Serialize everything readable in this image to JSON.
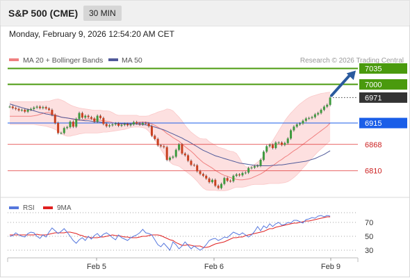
{
  "header": {
    "title": "S&P 500 (CME)",
    "timeframe": "30 MIN",
    "datetime": "Monday, February 9, 2026 12:54:20 AM CET"
  },
  "legend": {
    "ma20_bb": "MA 20 + Bollinger Bands",
    "ma50": "MA 50",
    "copyright": "Research © 2026 Trading Central",
    "rsi": "RSI",
    "rsi_ma": "9MA"
  },
  "colors": {
    "green": "#4a9a0e",
    "blue": "#1a5ee8",
    "red": "#e03030",
    "candle_up": "#3e9a3e",
    "candle_down": "#c84020",
    "bb_fill": "#fde0e0",
    "ma20": "#f08080",
    "ma50": "#505a9a",
    "arrow": "#2a5a9e",
    "rsi_line": "#5577dd",
    "rsi_ma_line": "#e02020"
  },
  "chart_data": [
    {
      "type": "candlestick",
      "title": "",
      "x_ticks": [
        "Feb 5",
        "Feb 6",
        "Feb 9"
      ],
      "price_range": [
        6753,
        7045
      ],
      "levels": [
        {
          "value": 7035,
          "label": "7035",
          "kind": "resistance"
        },
        {
          "value": 7000,
          "label": "7000",
          "kind": "resistance"
        },
        {
          "value": 6971,
          "label": "6971",
          "kind": "last"
        },
        {
          "value": 6915,
          "label": "6915",
          "kind": "pivot"
        },
        {
          "value": 6868,
          "label": "6868",
          "kind": "support"
        },
        {
          "value": 6810,
          "label": "6810",
          "kind": "support"
        }
      ],
      "close": [
        6951,
        6948,
        6946,
        6943,
        6944,
        6940,
        6944,
        6946,
        6949,
        6951,
        6948,
        6950,
        6947,
        6944,
        6933,
        6915,
        6893,
        6893,
        6904,
        6906,
        6918,
        6907,
        6924,
        6937,
        6927,
        6931,
        6928,
        6925,
        6918,
        6931,
        6926,
        6913,
        6908,
        6910,
        6912,
        6914,
        6909,
        6911,
        6913,
        6910,
        6912,
        6917,
        6914,
        6912,
        6915,
        6914,
        6908,
        6887,
        6880,
        6866,
        6864,
        6862,
        6834,
        6839,
        6841,
        6856,
        6868,
        6848,
        6844,
        6832,
        6823,
        6822,
        6809,
        6803,
        6799,
        6793,
        6785,
        6790,
        6777,
        6772,
        6781,
        6794,
        6788,
        6787,
        6799,
        6802,
        6800,
        6805,
        6806,
        6816,
        6817,
        6820,
        6821,
        6834,
        6852,
        6864,
        6867,
        6860,
        6872,
        6872,
        6867,
        6871,
        6881,
        6899,
        6907,
        6912,
        6914,
        6920,
        6925,
        6926,
        6928,
        6934,
        6937,
        6944,
        6951,
        6955,
        6971
      ],
      "ma20": [
        6930,
        6930,
        6930,
        6930,
        6930,
        6930,
        6930,
        6930,
        6931,
        6932,
        6934,
        6936,
        6938,
        6938,
        6935,
        6933,
        6931,
        6928,
        6927,
        6926,
        6925,
        6923,
        6922,
        6921,
        6922,
        6923,
        6924,
        6924,
        6923,
        6922,
        6921,
        6920,
        6919,
        6918,
        6916,
        6914,
        6913,
        6913,
        6913,
        6913,
        6914,
        6915,
        6916,
        6917,
        6917,
        6917,
        6916,
        6913,
        6910,
        6906,
        6902,
        6898,
        6892,
        6888,
        6883,
        6879,
        6875,
        6869,
        6863,
        6858,
        6853,
        6847,
        6840,
        6834,
        6828,
        6824,
        6820,
        6816,
        6811,
        6807,
        6803,
        6800,
        6798,
        6795,
        6793,
        6791,
        6790,
        6790,
        6791,
        6792,
        6794,
        6797,
        6800,
        6803,
        6807,
        6812,
        6817,
        6821,
        6826,
        6831,
        6835,
        6840,
        6844,
        6849,
        6854,
        6858,
        6863,
        6868,
        6873,
        6878,
        6883,
        6888,
        6893,
        6898,
        6903,
        6908,
        6915
      ],
      "bb_upper": [
        6962,
        6962,
        6962,
        6962,
        6962,
        6962,
        6962,
        6962,
        6962,
        6962,
        6962,
        6962,
        6963,
        6963,
        6965,
        6967,
        6968,
        6966,
        6963,
        6959,
        6955,
        6952,
        6950,
        6948,
        6947,
        6946,
        6945,
        6944,
        6943,
        6943,
        6943,
        6942,
        6942,
        6941,
        6938,
        6934,
        6932,
        6932,
        6932,
        6932,
        6932,
        6932,
        6932,
        6930,
        6930,
        6930,
        6931,
        6934,
        6936,
        6939,
        6941,
        6943,
        6946,
        6945,
        6942,
        6935,
        6928,
        6920,
        6910,
        6902,
        6895,
        6890,
        6885,
        6881,
        6880,
        6880,
        6874,
        6870,
        6866,
        6862,
        6860,
        6858,
        6855,
        6853,
        6852,
        6848,
        6838,
        6826,
        6819,
        6818,
        6820,
        6824,
        6829,
        6835,
        6843,
        6854,
        6866,
        6876,
        6887,
        6898,
        6909,
        6920,
        6929,
        6937,
        6944,
        6951,
        6957,
        6962,
        6967,
        6971,
        6974,
        6976,
        6978,
        6980,
        6981,
        6982,
        6983
      ],
      "bb_lower": [
        6912,
        6912,
        6912,
        6912,
        6912,
        6912,
        6912,
        6912,
        6912,
        6911,
        6910,
        6909,
        6908,
        6906,
        6904,
        6901,
        6897,
        6892,
        6888,
        6886,
        6886,
        6888,
        6889,
        6891,
        6892,
        6893,
        6893,
        6893,
        6893,
        6893,
        6894,
        6895,
        6895,
        6896,
        6897,
        6898,
        6899,
        6900,
        6901,
        6903,
        6905,
        6906,
        6906,
        6906,
        6905,
        6903,
        6897,
        6888,
        6878,
        6867,
        6857,
        6847,
        6836,
        6829,
        6824,
        6822,
        6820,
        6815,
        6810,
        6805,
        6800,
        6794,
        6787,
        6779,
        6772,
        6768,
        6767,
        6767,
        6767,
        6766,
        6766,
        6766,
        6767,
        6769,
        6772,
        6774,
        6774,
        6774,
        6775,
        6777,
        6779,
        6780,
        6780,
        6780,
        6780,
        6781,
        6782,
        6782,
        6782,
        6782,
        6783,
        6784,
        6786,
        6790,
        6795,
        6801,
        6808,
        6816,
        6823,
        6831,
        6838,
        6845,
        6852,
        6858,
        6864,
        6870,
        6876
      ],
      "ma50": [
        6957,
        6955,
        6953,
        6951,
        6949,
        6947,
        6945,
        6944,
        6942,
        6940,
        6938,
        6937,
        6935,
        6934,
        6932,
        6931,
        6930,
        6928,
        6927,
        6926,
        6925,
        6924,
        6923,
        6922,
        6921,
        6920,
        6920,
        6919,
        6918,
        6918,
        6917,
        6916,
        6916,
        6915,
        6915,
        6915,
        6914,
        6914,
        6914,
        6913,
        6913,
        6913,
        6913,
        6912,
        6912,
        6911,
        6910,
        6908,
        6906,
        6904,
        6902,
        6900,
        6897,
        6894,
        6891,
        6888,
        6885,
        6882,
        6878,
        6875,
        6871,
        6867,
        6863,
        6859,
        6855,
        6852,
        6849,
        6846,
        6843,
        6841,
        6839,
        6837,
        6835,
        6833,
        6831,
        6829,
        6827,
        6826,
        6825,
        6824,
        6823,
        6822,
        6822,
        6821,
        6821,
        6821,
        6821,
        6822,
        6822,
        6823,
        6823,
        6824,
        6825,
        6826,
        6827,
        6828,
        6829,
        6830,
        6831,
        6833,
        6835,
        6837,
        6840,
        6843,
        6846,
        6850,
        6854
      ],
      "projection": {
        "from": 6971,
        "to": 7035
      }
    },
    {
      "type": "line",
      "title": "",
      "series_names": [
        "RSI",
        "9MA"
      ],
      "y_ticks": [
        70,
        50,
        30
      ],
      "y_range": [
        20,
        85
      ],
      "rsi": [
        50,
        51,
        55,
        52,
        50,
        49,
        54,
        56,
        55,
        50,
        47,
        52,
        49,
        56,
        62,
        58,
        54,
        57,
        61,
        56,
        50,
        44,
        40,
        45,
        48,
        44,
        50,
        46,
        51,
        54,
        49,
        53,
        55,
        52,
        48,
        45,
        52,
        48,
        46,
        44,
        48,
        50,
        52,
        55,
        60,
        55,
        54,
        52,
        45,
        38,
        35,
        40,
        35,
        30,
        42,
        38,
        32,
        36,
        42,
        37,
        32,
        36,
        33,
        30,
        33,
        38,
        44,
        46,
        47,
        44,
        46,
        49,
        48,
        52,
        56,
        54,
        52,
        55,
        52,
        49,
        52,
        57,
        64,
        58,
        65,
        62,
        68,
        64,
        68,
        70,
        66,
        67,
        70,
        69,
        73,
        73,
        71,
        69,
        74,
        75,
        77,
        76,
        79,
        80,
        78,
        80,
        79
      ],
      "rsi_ma": [
        52,
        52,
        52,
        52,
        52,
        52,
        52,
        52,
        52,
        53,
        52,
        52,
        52,
        53,
        54,
        55,
        55,
        55,
        55,
        56,
        56,
        55,
        54,
        52,
        51,
        49,
        49,
        48,
        48,
        48,
        49,
        49,
        50,
        51,
        52,
        51,
        51,
        50,
        49,
        49,
        48,
        48,
        48,
        49,
        50,
        50,
        51,
        52,
        52,
        52,
        51,
        49,
        47,
        45,
        44,
        41,
        39,
        37,
        37,
        38,
        37,
        36,
        36,
        36,
        34,
        34,
        35,
        37,
        39,
        40,
        41,
        42,
        44,
        46,
        48,
        48,
        49,
        49,
        51,
        52,
        53,
        54,
        55,
        56,
        57,
        59,
        61,
        61,
        63,
        64,
        65,
        66,
        67,
        68,
        69,
        69,
        70,
        71,
        72,
        72,
        73,
        74,
        75,
        76,
        77,
        78,
        78
      ]
    }
  ]
}
